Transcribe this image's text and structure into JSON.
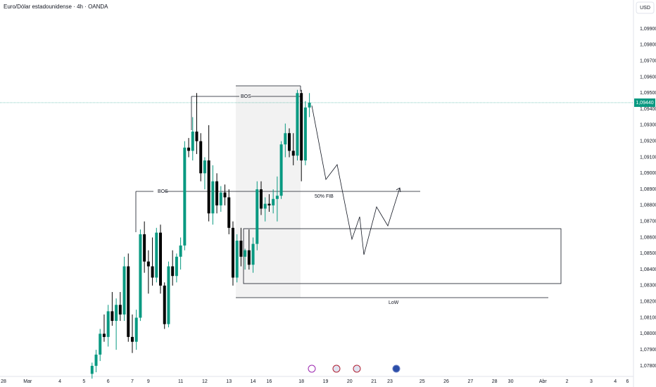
{
  "chart_data": {
    "type": "candlestick",
    "title": "Euro/Dólar estadounidense · 4h · OANDA",
    "currency": "USD",
    "open": [
      1.0775,
      1.078,
      1.0787,
      1.08,
      1.0798,
      1.0814,
      1.0808,
      1.0818,
      1.0812,
      1.0842,
      1.0798,
      1.0795,
      1.081,
      1.0862,
      1.0845,
      1.0842,
      1.0835,
      1.0863,
      1.083,
      1.0806,
      1.0842,
      1.0836,
      1.0848,
      1.0855,
      1.0916,
      1.0914,
      1.0926,
      1.092,
      1.09,
      1.0908,
      1.0875,
      1.0895,
      1.088,
      1.0888,
      1.0885,
      1.0866,
      1.0835,
      1.0858,
      1.0848,
      1.0852,
      1.0843,
      1.0856,
      1.089,
      1.0878,
      1.0881,
      1.088,
      1.0884,
      1.0886,
      1.0918,
      1.0925,
      1.0914,
      1.0911,
      1.095,
      1.0908,
      1.0941
    ],
    "high": [
      1.0782,
      1.079,
      1.0803,
      1.0812,
      1.0818,
      1.0826,
      1.0822,
      1.0826,
      1.0848,
      1.085,
      1.0812,
      1.0815,
      1.0865,
      1.087,
      1.0852,
      1.086,
      1.0866,
      1.0868,
      1.0832,
      1.0845,
      1.0852,
      1.085,
      1.086,
      1.092,
      1.0922,
      1.0935,
      1.095,
      1.0925,
      1.091,
      1.093,
      1.0905,
      1.09,
      1.0892,
      1.0893,
      1.089,
      1.087,
      1.0862,
      1.0866,
      1.0853,
      1.0865,
      1.086,
      1.0895,
      1.0895,
      1.0885,
      1.0887,
      1.089,
      1.0898,
      1.092,
      1.0931,
      1.0928,
      1.0925,
      1.0952,
      1.0952,
      1.0945,
      1.095
    ],
    "low": [
      1.0772,
      1.0776,
      1.0783,
      1.0795,
      1.0792,
      1.0805,
      1.079,
      1.0808,
      1.0808,
      1.0795,
      1.0788,
      1.079,
      1.0808,
      1.0838,
      1.0825,
      1.083,
      1.0832,
      1.0825,
      1.0803,
      1.0804,
      1.083,
      1.0832,
      1.084,
      1.0852,
      1.091,
      1.0908,
      1.0912,
      1.0895,
      1.089,
      1.087,
      1.0868,
      1.0875,
      1.0876,
      1.088,
      1.0862,
      1.083,
      1.0832,
      1.0842,
      1.084,
      1.084,
      1.0838,
      1.0852,
      1.0874,
      1.087,
      1.0876,
      1.0875,
      1.087,
      1.0884,
      1.091,
      1.091,
      1.0905,
      1.0908,
      1.0895,
      1.0905,
      1.0935
    ],
    "close": [
      1.078,
      1.0787,
      1.08,
      1.0798,
      1.0814,
      1.0808,
      1.0818,
      1.0812,
      1.0842,
      1.0798,
      1.0795,
      1.081,
      1.0862,
      1.0845,
      1.0842,
      1.0835,
      1.0863,
      1.083,
      1.0806,
      1.0842,
      1.0836,
      1.0848,
      1.0855,
      1.0916,
      1.0914,
      1.0926,
      1.092,
      1.09,
      1.0908,
      1.0875,
      1.0895,
      1.088,
      1.0888,
      1.0885,
      1.0866,
      1.0835,
      1.0858,
      1.0848,
      1.0852,
      1.0843,
      1.0856,
      1.089,
      1.0878,
      1.0881,
      1.088,
      1.0884,
      1.0886,
      1.0918,
      1.0925,
      1.0914,
      1.0911,
      1.095,
      1.0908,
      1.0941,
      1.0944
    ],
    "up_color": "#089981",
    "down_color": "#000000",
    "xlim": [
      -22.87,
      134.5
    ],
    "xticks": [
      {
        "value": -22,
        "label": "28"
      },
      {
        "value": -16,
        "label": "Mar"
      },
      {
        "value": -8,
        "label": "4"
      },
      {
        "value": -2,
        "label": "5"
      },
      {
        "value": 4,
        "label": "6"
      },
      {
        "value": 10,
        "label": "7"
      },
      {
        "value": 14,
        "label": "9"
      },
      {
        "value": 22,
        "label": "11"
      },
      {
        "value": 28,
        "label": "12"
      },
      {
        "value": 34,
        "label": "13"
      },
      {
        "value": 40,
        "label": "14"
      },
      {
        "value": 44,
        "label": "16"
      },
      {
        "value": 52,
        "label": "18"
      },
      {
        "value": 58,
        "label": "19"
      },
      {
        "value": 64,
        "label": "20"
      },
      {
        "value": 70,
        "label": "21"
      },
      {
        "value": 74,
        "label": "23"
      },
      {
        "value": 82,
        "label": "25"
      },
      {
        "value": 88,
        "label": "26"
      },
      {
        "value": 94,
        "label": "27"
      },
      {
        "value": 100,
        "label": "28"
      },
      {
        "value": 104,
        "label": "30"
      },
      {
        "value": 112,
        "label": "Abr"
      },
      {
        "value": 118,
        "label": "2"
      },
      {
        "value": 124,
        "label": "3"
      },
      {
        "value": 130,
        "label": "4"
      },
      {
        "value": 133,
        "label": "6"
      }
    ],
    "ylim": [
      1.07747,
      1.1008
    ],
    "yticks": [
      {
        "value": 1.078,
        "label": "1,07800"
      },
      {
        "value": 1.079,
        "label": "1,07900"
      },
      {
        "value": 1.08,
        "label": "1,08000"
      },
      {
        "value": 1.081,
        "label": "1,08100"
      },
      {
        "value": 1.082,
        "label": "1,08200"
      },
      {
        "value": 1.083,
        "label": "1,08300"
      },
      {
        "value": 1.084,
        "label": "1,08400"
      },
      {
        "value": 1.085,
        "label": "1,08500"
      },
      {
        "value": 1.086,
        "label": "1,08600"
      },
      {
        "value": 1.087,
        "label": "1,08700"
      },
      {
        "value": 1.088,
        "label": "1,08800"
      },
      {
        "value": 1.089,
        "label": "1,08900"
      },
      {
        "value": 1.09,
        "label": "1,09000"
      },
      {
        "value": 1.091,
        "label": "1,09100"
      },
      {
        "value": 1.092,
        "label": "1,09200"
      },
      {
        "value": 1.093,
        "label": "1,09300"
      },
      {
        "value": 1.094,
        "label": "1,09400"
      },
      {
        "value": 1.095,
        "label": "1,09500"
      },
      {
        "value": 1.096,
        "label": "1,09600"
      },
      {
        "value": 1.097,
        "label": "1,09700"
      },
      {
        "value": 1.098,
        "label": "1,09800"
      },
      {
        "value": 1.099,
        "label": "1,09900"
      }
    ],
    "last_price": {
      "value": 1.0944,
      "label": "1,09440"
    },
    "annotations": [
      "BOS",
      "BOS",
      "50% FIB",
      "LoW"
    ]
  }
}
